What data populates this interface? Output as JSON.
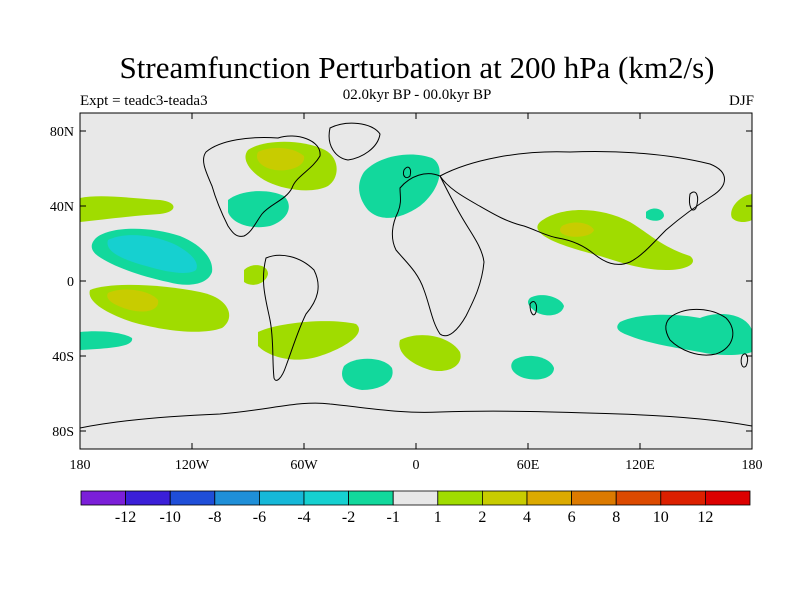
{
  "title": "Streamfunction Perturbation at 200 hPa (km2/s)",
  "subtitle": "02.0kyr BP - 00.0kyr BP",
  "left_label": "Expt = teadc3-teada3",
  "right_label": "DJF",
  "axes": {
    "lat_ticks": [
      "80N",
      "40N",
      "0",
      "40S",
      "80S"
    ],
    "lon_ticks": [
      "180",
      "120W",
      "60W",
      "0",
      "60E",
      "120E",
      "180"
    ]
  },
  "colorbar": {
    "labels": [
      "-12",
      "-10",
      "-8",
      "-6",
      "-4",
      "-2",
      "-1",
      "1",
      "2",
      "4",
      "6",
      "8",
      "10",
      "12"
    ],
    "colors": [
      "#7b1fd8",
      "#3b1fd8",
      "#1f4ed8",
      "#1f8fd8",
      "#16b8d8",
      "#16d0d0",
      "#12d89c",
      "#e8e8e8",
      "#a0dc00",
      "#c8cc00",
      "#dcaa00",
      "#dc7a00",
      "#dc4a00",
      "#dc2000",
      "#dc0000"
    ]
  },
  "colors": {
    "background_field": "#e8e8e8",
    "neg_1_to_2": "#12d89c",
    "neg_2_to_4": "#16d0d0",
    "pos_1_to_2": "#a0dc00",
    "pos_2_to_4": "#c8cc00",
    "pos_4_to_6": "#dcaa00"
  }
}
